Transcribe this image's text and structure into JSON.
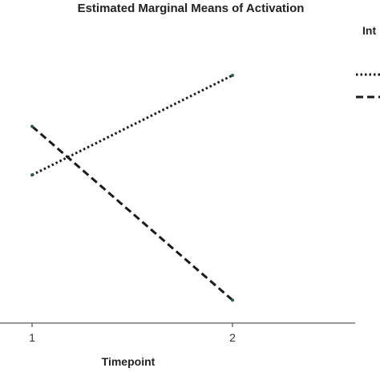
{
  "chart_data": {
    "type": "line",
    "title": "Estimated Marginal Means of Activation",
    "xlabel": "Timepoint",
    "ylabel": "",
    "categories": [
      "1",
      "2"
    ],
    "ylim": [
      0,
      100
    ],
    "series": [
      {
        "values": [
          57,
          100
        ],
        "style": "dotted",
        "color": "#1a1a1a"
      },
      {
        "values": [
          78,
          3
        ],
        "style": "dashed",
        "color": "#1a1a1a"
      }
    ],
    "legend": {
      "title": "Int",
      "position": "top-right"
    },
    "grid": false
  }
}
